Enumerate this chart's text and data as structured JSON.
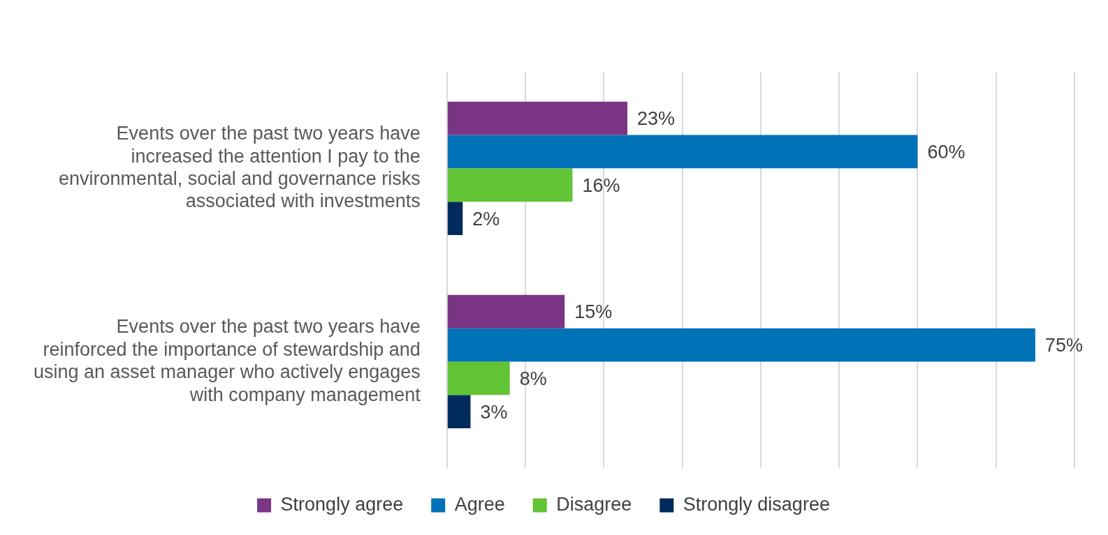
{
  "chart_data": {
    "type": "bar",
    "orientation": "horizontal",
    "categories": [
      "Events over the past two years have increased the attention I pay to the environmental, social and governance risks associated with investments",
      "Events over the past two years have reinforced the importance of stewardship and using an asset manager who actively engages with company management"
    ],
    "series": [
      {
        "name": "Strongly agree",
        "color": "#7b3585",
        "values": [
          23,
          15
        ],
        "value_labels": [
          "23%",
          "15%"
        ]
      },
      {
        "name": "Agree",
        "color": "#0072b8",
        "values": [
          60,
          75
        ],
        "value_labels": [
          "60%",
          "75%"
        ]
      },
      {
        "name": "Disagree",
        "color": "#62c435",
        "values": [
          16,
          8
        ],
        "value_labels": [
          "16%",
          "8%"
        ]
      },
      {
        "name": "Strongly disagree",
        "color": "#002b5c",
        "values": [
          2,
          3
        ],
        "value_labels": [
          "2%",
          "3%"
        ]
      }
    ],
    "xlim": [
      0,
      80
    ],
    "xticks": [
      {
        "value": 0,
        "label": null
      },
      {
        "value": 10,
        "label": null
      },
      {
        "value": 20,
        "label": null
      },
      {
        "value": 30,
        "label": null
      },
      {
        "value": 40,
        "label": null
      },
      {
        "value": 50,
        "label": null
      },
      {
        "value": 60,
        "label": null
      },
      {
        "value": 70,
        "label": null
      },
      {
        "value": 80,
        "label": null
      }
    ],
    "tick_labels": "y",
    "grid": "x",
    "legend": "bottom"
  }
}
